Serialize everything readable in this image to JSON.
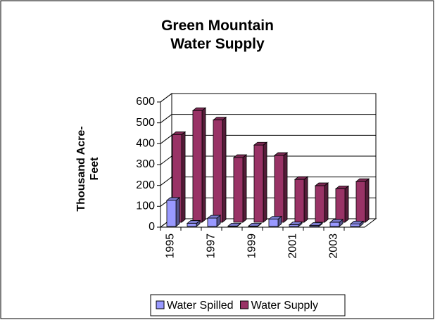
{
  "chart_data": {
    "type": "bar3d",
    "title": "Green Mountain Water Supply",
    "y_label": "Thousand Acre-Feet",
    "categories": [
      "1995",
      null,
      "1997",
      null,
      "1999",
      null,
      "2001",
      null,
      "2003",
      null
    ],
    "series": [
      {
        "name": "Water Spilled",
        "color": "#9999ff",
        "values": [
          125,
          15,
          40,
          2,
          2,
          35,
          8,
          5,
          20,
          12
        ]
      },
      {
        "name": "Water Supply",
        "color": "#993366",
        "values": [
          420,
          535,
          490,
          310,
          370,
          320,
          205,
          175,
          160,
          195
        ]
      }
    ],
    "ylim": [
      0,
      600
    ],
    "yticks": [
      0,
      100,
      200,
      300,
      400,
      500,
      600
    ],
    "grid": true
  }
}
